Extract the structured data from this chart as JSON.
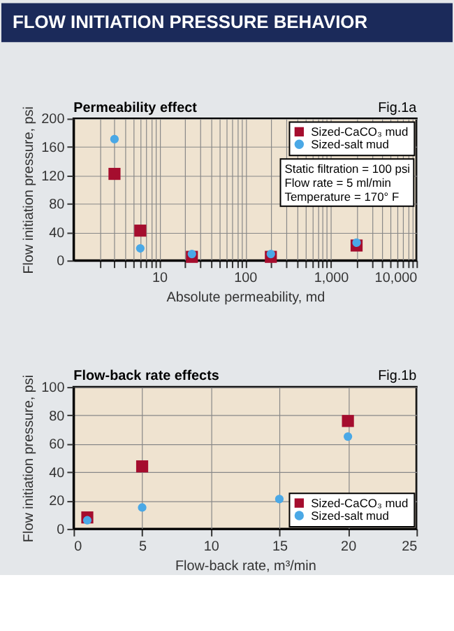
{
  "chart_data": [
    {
      "type": "scatter",
      "title": "FLOW INITIATION PRESSURE BEHAVIOR",
      "subtitle": "Permeability effect",
      "xlabel": "Absolute permeability, md",
      "ylabel": "Flow initiation pressure, psi",
      "annotations": [
        "Fig.1a",
        "Static filtration = 100 psi",
        "Flow rate = 5 ml/min",
        "Temperature = 170° F"
      ],
      "x": [
        3,
        6,
        24,
        200,
        2000
      ],
      "series": [
        {
          "name": "Sized-CaCO₃ mud",
          "color": "#a50d2e",
          "marker": "square",
          "values": [
            122,
            42,
            5,
            5,
            21
          ]
        },
        {
          "name": "Sized-salt mud",
          "color": "#4aa8e6",
          "marker": "circle",
          "values": [
            171,
            17,
            9,
            9,
            25
          ]
        }
      ],
      "log": "x",
      "xlim": [
        1,
        10000
      ],
      "xticks": [
        {
          "value": 2,
          "label": null
        },
        {
          "value": 3,
          "label": null
        },
        {
          "value": 4,
          "label": null
        },
        {
          "value": 5,
          "label": null
        },
        {
          "value": 6,
          "label": null
        },
        {
          "value": 7,
          "label": null
        },
        {
          "value": 8,
          "label": null
        },
        {
          "value": 9,
          "label": null
        },
        10,
        {
          "value": 20,
          "label": null
        },
        {
          "value": 30,
          "label": null
        },
        {
          "value": 40,
          "label": null
        },
        {
          "value": 50,
          "label": null
        },
        {
          "value": 60,
          "label": null
        },
        {
          "value": 70,
          "label": null
        },
        {
          "value": 80,
          "label": null
        },
        {
          "value": 90,
          "label": null
        },
        100,
        {
          "value": 200,
          "label": null
        },
        {
          "value": 300,
          "label": null
        },
        {
          "value": 400,
          "label": null
        },
        {
          "value": 500,
          "label": null
        },
        {
          "value": 600,
          "label": null
        },
        {
          "value": 700,
          "label": null
        },
        {
          "value": 800,
          "label": null
        },
        {
          "value": 900,
          "label": null
        },
        {
          "value": 1000,
          "label": "1,000"
        },
        {
          "value": 2000,
          "label": null
        },
        {
          "value": 3000,
          "label": null
        },
        {
          "value": 4000,
          "label": null
        },
        {
          "value": 5000,
          "label": null
        },
        {
          "value": 6000,
          "label": null
        },
        {
          "value": 7000,
          "label": null
        },
        {
          "value": 8000,
          "label": null
        },
        {
          "value": 9000,
          "label": null
        },
        {
          "value": 10000,
          "label": "10,000"
        }
      ],
      "ylim": [
        0,
        200
      ],
      "yticks": [
        0,
        40,
        80,
        120,
        160,
        200
      ],
      "grid": true,
      "legend": "top right"
    },
    {
      "type": "scatter",
      "subtitle": "Flow-back rate effects",
      "xlabel": "Flow-back rate, m³/min",
      "ylabel": "Flow initiation pressure, psi",
      "annotations": [
        "Fig.1b"
      ],
      "series": [
        {
          "name": "Sized-CaCO₃ mud",
          "color": "#a50d2e",
          "marker": "square",
          "x": [
            1,
            5,
            20
          ],
          "values": [
            8,
            44,
            76
          ]
        },
        {
          "name": "Sized-salt mud",
          "color": "#4aa8e6",
          "marker": "circle",
          "x": [
            1,
            5,
            15,
            20
          ],
          "values": [
            6,
            15,
            21,
            65
          ]
        }
      ],
      "xlim": [
        0,
        25
      ],
      "xticks": [
        0,
        5,
        10,
        15,
        20,
        25
      ],
      "ylim": [
        0,
        100
      ],
      "yticks": [
        0,
        20,
        40,
        60,
        80,
        100
      ],
      "grid": true,
      "legend": "bottom right"
    }
  ]
}
